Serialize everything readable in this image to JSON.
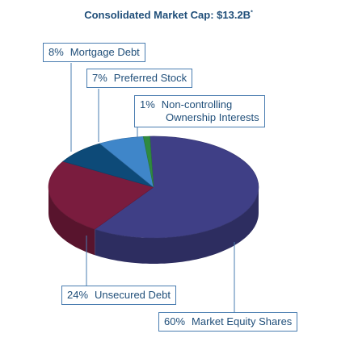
{
  "chart_data": {
    "type": "pie",
    "title": "Consolidated Market Cap: $13.2B",
    "title_note": "*",
    "slices": [
      {
        "percent_label": "60%",
        "label": "Market Equity Shares",
        "value": 60,
        "color": "#3f3f86"
      },
      {
        "percent_label": "24%",
        "label": "Unsecured Debt",
        "value": 24,
        "color": "#7a1c3e"
      },
      {
        "percent_label": "8%",
        "label": "Mortgage Debt",
        "value": 8,
        "color": "#0d4a78"
      },
      {
        "percent_label": "7%",
        "label": "Preferred Stock",
        "value": 7,
        "color": "#3f86c9"
      },
      {
        "percent_label": "1%",
        "label": "Non-controlling",
        "label_line2": "Ownership Interests",
        "value": 1,
        "color": "#2f8a3f"
      }
    ],
    "legend": "callouts"
  }
}
